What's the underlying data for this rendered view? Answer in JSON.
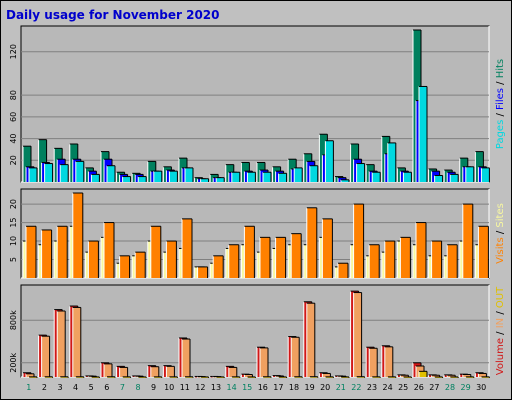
{
  "chart_data": {
    "type": "bar",
    "title": "Daily usage for November 2020",
    "categories": [
      "1",
      "2",
      "3",
      "4",
      "5",
      "6",
      "7",
      "8",
      "9",
      "10",
      "11",
      "12",
      "13",
      "14",
      "15",
      "16",
      "17",
      "18",
      "19",
      "20",
      "21",
      "22",
      "23",
      "24",
      "25",
      "26",
      "27",
      "28",
      "29",
      "30"
    ],
    "weekend_days": [
      "1",
      "7",
      "8",
      "14",
      "15",
      "21",
      "22",
      "28",
      "29"
    ],
    "colors": {
      "background": "#c0c0c0",
      "plot": "#b8b8b8",
      "grid": "#808080",
      "hits": "#00805e",
      "files": "#0000ff",
      "pages": "#00d8e0",
      "visits": "#ff8000",
      "sites": "#f8f8a0",
      "volume": "#d01818",
      "in": "#f0a060",
      "out": "#e0c000",
      "title": "#0000cc",
      "weekday_label": "#000000",
      "weekend_label": "#008060"
    },
    "panels": [
      {
        "id": "hits-panel",
        "right_label_parts": [
          {
            "text": "Pages",
            "color": "#00d8e0"
          },
          {
            "text": " / ",
            "color": "#000000"
          },
          {
            "text": "Files",
            "color": "#0000ff"
          },
          {
            "text": " / ",
            "color": "#000000"
          },
          {
            "text": "Hits",
            "color": "#00805e"
          }
        ],
        "ymax": 140,
        "ticks": [
          {
            "value": 20,
            "label": "20"
          },
          {
            "value": 40,
            "label": "40"
          },
          {
            "value": 60,
            "label": "60"
          },
          {
            "value": 80,
            "label": "80"
          },
          {
            "value": 120,
            "label": "120"
          }
        ],
        "series": [
          {
            "name": "Hits",
            "color": "#00805e",
            "values": [
              33,
              39,
              31,
              35,
              13,
              28,
              9,
              8,
              19,
              14,
              22,
              4,
              7,
              16,
              18,
              18,
              14,
              21,
              26,
              44,
              5,
              35,
              16,
              42,
              13,
              140,
              12,
              11,
              22,
              28
            ]
          },
          {
            "name": "Files",
            "color": "#0000ff",
            "values": [
              14,
              18,
              21,
              21,
              10,
              21,
              7,
              7,
              10,
              11,
              13,
              3,
              4,
              9,
              10,
              11,
              10,
              12,
              19,
              25,
              4,
              21,
              10,
              26,
              10,
              75,
              10,
              9,
              14,
              14
            ]
          },
          {
            "name": "Pages",
            "color": "#00d8e0",
            "values": [
              13,
              17,
              16,
              19,
              7,
              15,
              5,
              5,
              10,
              10,
              13,
              3,
              4,
              9,
              9,
              9,
              8,
              13,
              15,
              38,
              2,
              17,
              9,
              36,
              9,
              88,
              6,
              7,
              14,
              13
            ]
          }
        ]
      },
      {
        "id": "visits-panel",
        "right_label_parts": [
          {
            "text": "Visits",
            "color": "#ff8000"
          },
          {
            "text": " / ",
            "color": "#000000"
          },
          {
            "text": "Sites",
            "color": "#f8f8a0"
          }
        ],
        "ymax": 23,
        "ticks": [
          {
            "value": 5,
            "label": "5"
          },
          {
            "value": 10,
            "label": "10"
          },
          {
            "value": 15,
            "label": "15"
          },
          {
            "value": 20,
            "label": "20"
          }
        ],
        "series": [
          {
            "name": "Sites",
            "color": "#f8f8a0",
            "values": [
              10,
              9,
              10,
              14,
              7,
              11,
              4,
              6,
              10,
              7,
              8,
              3,
              4,
              8,
              9,
              7,
              8,
              9,
              9,
              11,
              3,
              9,
              6,
              7,
              10,
              9,
              6,
              6,
              10,
              9
            ]
          },
          {
            "name": "Visits",
            "color": "#ff8000",
            "values": [
              14,
              13,
              14,
              23,
              10,
              15,
              6,
              7,
              14,
              10,
              16,
              3,
              6,
              9,
              14,
              11,
              11,
              12,
              19,
              16,
              4,
              20,
              9,
              10,
              11,
              15,
              10,
              9,
              20,
              14
            ]
          }
        ]
      },
      {
        "id": "volume-panel",
        "right_label_parts": [
          {
            "text": "Volume",
            "color": "#d01818"
          },
          {
            "text": " / ",
            "color": "#000000"
          },
          {
            "text": "IN",
            "color": "#f0a060"
          },
          {
            "text": " / ",
            "color": "#000000"
          },
          {
            "text": "OUT",
            "color": "#e0c000"
          }
        ],
        "ymax": 1240,
        "ticks": [
          {
            "value": 200,
            "label": "200k"
          },
          {
            "value": 800,
            "label": "800k"
          }
        ],
        "series": [
          {
            "name": "Volume",
            "color": "#d01818",
            "values": [
              60,
              590,
              950,
              1000,
              15,
              200,
              150,
              15,
              160,
              160,
              550,
              8,
              8,
              150,
              40,
              420,
              20,
              570,
              1060,
              60,
              15,
              1210,
              420,
              440,
              30,
              200,
              30,
              30,
              40,
              60
            ]
          },
          {
            "name": "IN",
            "color": "#f0a060",
            "values": [
              45,
              575,
              930,
              980,
              12,
              185,
              135,
              12,
              145,
              150,
              535,
              6,
              6,
              135,
              35,
              410,
              15,
              560,
              1040,
              50,
              12,
              1190,
              405,
              425,
              25,
              155,
              25,
              25,
              35,
              50
            ]
          },
          {
            "name": "OUT",
            "color": "#e0c000",
            "values": [
              2,
              3,
              3,
              3,
              1,
              3,
              2,
              1,
              2,
              2,
              3,
              1,
              1,
              2,
              1,
              3,
              1,
              3,
              4,
              2,
              1,
              4,
              2,
              2,
              1,
              80,
              1,
              1,
              2,
              2
            ]
          }
        ]
      }
    ]
  }
}
